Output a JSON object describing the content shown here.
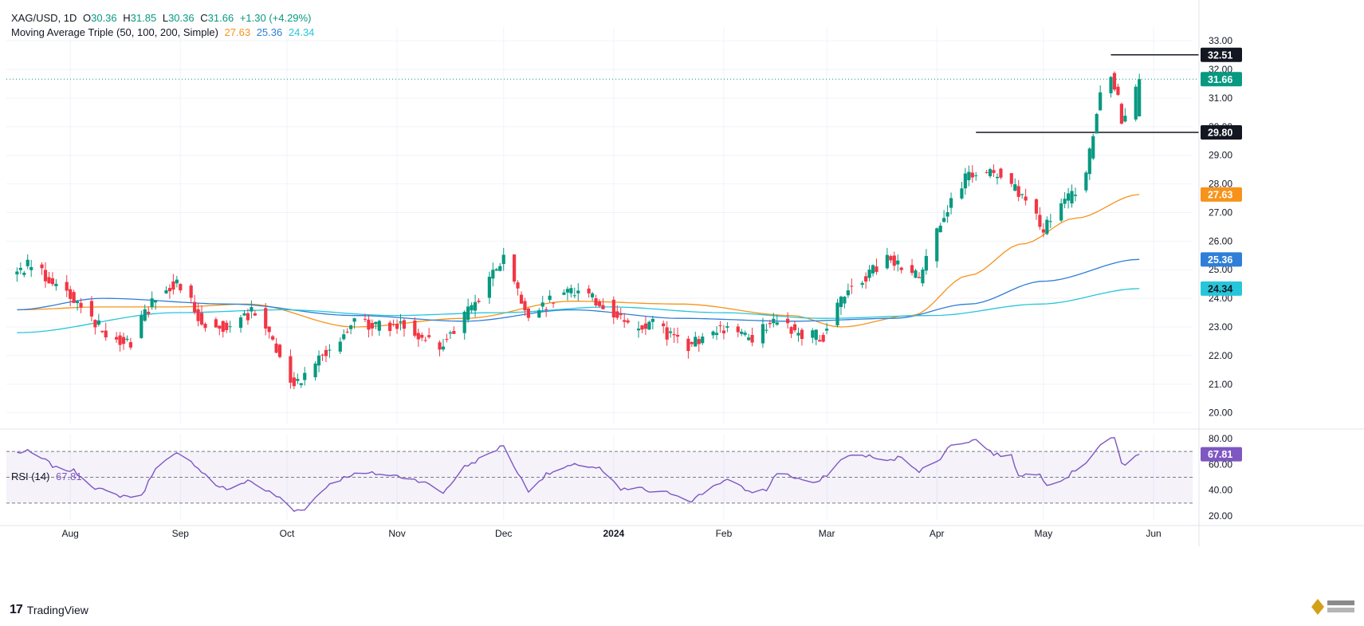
{
  "header": {
    "symbol": "XAG/USD, 1D",
    "open_label": "O",
    "open": "30.36",
    "high_label": "H",
    "high": "31.85",
    "low_label": "L",
    "low": "30.36",
    "close_label": "C",
    "close": "31.66",
    "change": "+1.30 (+4.29%)",
    "ma_label": "Moving Average Triple (50, 100, 200, Simple)",
    "ma50": "27.63",
    "ma100": "25.36",
    "ma200": "24.34",
    "rsi_label": "RSI (14)",
    "rsi": "67.81"
  },
  "brand": {
    "name": "TradingView"
  },
  "colors": {
    "up": "#089981",
    "down": "#f23645",
    "ma50": "#f7931a",
    "ma100": "#2f7ed8",
    "ma200": "#26c6da",
    "rsi": "#7e57c2",
    "grid": "#f0f3fa",
    "text": "#131722"
  },
  "chart_data": [
    {
      "type": "candlestick",
      "title": "XAG/USD, 1D",
      "y_axis_ticks": [
        "20.00",
        "21.00",
        "22.00",
        "23.00",
        "24.00",
        "25.00",
        "26.00",
        "27.00",
        "28.00",
        "29.00",
        "30.00",
        "31.00",
        "32.00",
        "33.00"
      ],
      "ylim": [
        19.6,
        33.2
      ],
      "x_axis_labels": [
        "Aug",
        "Sep",
        "Oct",
        "Nov",
        "Dec",
        "2024",
        "Feb",
        "Mar",
        "Apr",
        "May",
        "Jun"
      ],
      "price_labels": [
        {
          "value": 32.51,
          "text": "32.51",
          "style": "level"
        },
        {
          "value": 31.66,
          "text": "31.66",
          "style": "last"
        },
        {
          "value": 29.8,
          "text": "29.80",
          "style": "level"
        },
        {
          "value": 27.63,
          "text": "27.63",
          "style": "ma50"
        },
        {
          "value": 25.36,
          "text": "25.36",
          "style": "ma100"
        },
        {
          "value": 24.34,
          "text": "24.34",
          "style": "ma200"
        }
      ],
      "horizontal_levels": [
        {
          "value": 32.51,
          "from": "2024-05-20",
          "to": "2024-05-28"
        },
        {
          "value": 29.8,
          "from": "2024-04-12",
          "to": "2024-05-28"
        }
      ],
      "last_price": 31.66,
      "anchors": [
        [
          "2023-07-17",
          24.9
        ],
        [
          "2023-07-21",
          25.2
        ],
        [
          "2023-07-28",
          24.5
        ],
        [
          "2023-08-04",
          23.8
        ],
        [
          "2023-08-11",
          22.7
        ],
        [
          "2023-08-18",
          22.5
        ],
        [
          "2023-08-25",
          24.1
        ],
        [
          "2023-08-31",
          24.6
        ],
        [
          "2023-09-07",
          23.2
        ],
        [
          "2023-09-15",
          23.0
        ],
        [
          "2023-09-22",
          23.6
        ],
        [
          "2023-09-29",
          22.1
        ],
        [
          "2023-10-03",
          21.0
        ],
        [
          "2023-10-10",
          21.9
        ],
        [
          "2023-10-20",
          23.2
        ],
        [
          "2023-10-27",
          23.0
        ],
        [
          "2023-11-03",
          23.1
        ],
        [
          "2023-11-13",
          22.3
        ],
        [
          "2023-11-22",
          23.7
        ],
        [
          "2023-12-01",
          25.4
        ],
        [
          "2023-12-08",
          23.2
        ],
        [
          "2023-12-14",
          23.9
        ],
        [
          "2023-12-22",
          24.3
        ],
        [
          "2023-12-29",
          23.8
        ],
        [
          "2024-01-05",
          23.0
        ],
        [
          "2024-01-12",
          23.1
        ],
        [
          "2024-01-22",
          22.3
        ],
        [
          "2024-01-31",
          23.0
        ],
        [
          "2024-02-09",
          22.6
        ],
        [
          "2024-02-16",
          23.3
        ],
        [
          "2024-02-23",
          22.7
        ],
        [
          "2024-02-29",
          22.7
        ],
        [
          "2024-03-06",
          24.2
        ],
        [
          "2024-03-12",
          24.8
        ],
        [
          "2024-03-19",
          25.4
        ],
        [
          "2024-03-27",
          24.7
        ],
        [
          "2024-04-03",
          27.0
        ],
        [
          "2024-04-09",
          28.2
        ],
        [
          "2024-04-12",
          28.3
        ],
        [
          "2024-04-19",
          28.4
        ],
        [
          "2024-04-26",
          27.3
        ],
        [
          "2024-05-01",
          26.4
        ],
        [
          "2024-05-07",
          27.3
        ],
        [
          "2024-05-13",
          28.3
        ],
        [
          "2024-05-17",
          31.3
        ],
        [
          "2024-05-20",
          31.9
        ],
        [
          "2024-05-22",
          30.9
        ],
        [
          "2024-05-23",
          30.3
        ],
        [
          "2024-05-24",
          30.4
        ],
        [
          "2024-05-28",
          31.66
        ]
      ],
      "moving_averages": [
        {
          "name": "MA 50",
          "points": [
            [
              "2023-07-17",
              23.6
            ],
            [
              "2023-08-10",
              23.7
            ],
            [
              "2023-08-31",
              23.7
            ],
            [
              "2023-09-20",
              23.8
            ],
            [
              "2023-10-20",
              23.0
            ],
            [
              "2023-11-20",
              23.3
            ],
            [
              "2023-12-20",
              23.9
            ],
            [
              "2024-01-20",
              23.8
            ],
            [
              "2024-02-20",
              23.4
            ],
            [
              "2024-03-05",
              23.0
            ],
            [
              "2024-03-25",
              23.4
            ],
            [
              "2024-04-10",
              24.8
            ],
            [
              "2024-04-25",
              25.9
            ],
            [
              "2024-05-10",
              26.8
            ],
            [
              "2024-05-28",
              27.63
            ]
          ]
        },
        {
          "name": "MA 100",
          "points": [
            [
              "2023-07-17",
              23.6
            ],
            [
              "2023-08-10",
              24.0
            ],
            [
              "2023-09-15",
              23.8
            ],
            [
              "2023-10-20",
              23.4
            ],
            [
              "2023-11-20",
              23.2
            ],
            [
              "2023-12-20",
              23.6
            ],
            [
              "2024-01-20",
              23.3
            ],
            [
              "2024-02-20",
              23.2
            ],
            [
              "2024-03-20",
              23.3
            ],
            [
              "2024-04-10",
              23.8
            ],
            [
              "2024-05-01",
              24.6
            ],
            [
              "2024-05-28",
              25.36
            ]
          ]
        },
        {
          "name": "MA 200",
          "points": [
            [
              "2023-07-17",
              22.8
            ],
            [
              "2023-08-31",
              23.5
            ],
            [
              "2023-09-30",
              23.6
            ],
            [
              "2023-10-31",
              23.4
            ],
            [
              "2023-11-30",
              23.5
            ],
            [
              "2023-12-31",
              23.7
            ],
            [
              "2024-01-31",
              23.5
            ],
            [
              "2024-02-29",
              23.3
            ],
            [
              "2024-03-31",
              23.4
            ],
            [
              "2024-04-30",
              23.8
            ],
            [
              "2024-05-28",
              24.34
            ]
          ]
        }
      ]
    },
    {
      "type": "line",
      "title": "RSI (14)",
      "y_axis_ticks": [
        "20.00",
        "40.00",
        "60.00",
        "80.00"
      ],
      "ylim": [
        17,
        83
      ],
      "overbought": 70,
      "oversold": 30,
      "midline": 50,
      "last_value": 67.81,
      "points": [
        [
          "2023-07-17",
          69
        ],
        [
          "2023-07-20",
          70
        ],
        [
          "2023-07-25",
          63
        ],
        [
          "2023-07-28",
          57
        ],
        [
          "2023-08-02",
          55
        ],
        [
          "2023-08-08",
          42
        ],
        [
          "2023-08-14",
          36
        ],
        [
          "2023-08-21",
          35
        ],
        [
          "2023-08-25",
          58
        ],
        [
          "2023-08-31",
          68
        ],
        [
          "2023-09-05",
          60
        ],
        [
          "2023-09-11",
          44
        ],
        [
          "2023-09-15",
          40
        ],
        [
          "2023-09-20",
          48
        ],
        [
          "2023-09-25",
          40
        ],
        [
          "2023-09-29",
          34
        ],
        [
          "2023-10-03",
          24
        ],
        [
          "2023-10-06",
          26
        ],
        [
          "2023-10-13",
          45
        ],
        [
          "2023-10-19",
          52
        ],
        [
          "2023-10-25",
          53
        ],
        [
          "2023-11-01",
          51
        ],
        [
          "2023-11-08",
          47
        ],
        [
          "2023-11-14",
          38
        ],
        [
          "2023-11-20",
          58
        ],
        [
          "2023-11-27",
          68
        ],
        [
          "2023-12-01",
          75
        ],
        [
          "2023-12-05",
          53
        ],
        [
          "2023-12-08",
          40
        ],
        [
          "2023-12-13",
          52
        ],
        [
          "2023-12-18",
          57
        ],
        [
          "2023-12-22",
          60
        ],
        [
          "2023-12-28",
          57
        ],
        [
          "2024-01-03",
          40
        ],
        [
          "2024-01-08",
          42
        ],
        [
          "2024-01-12",
          38
        ],
        [
          "2024-01-17",
          38
        ],
        [
          "2024-01-23",
          32
        ],
        [
          "2024-01-30",
          45
        ],
        [
          "2024-02-02",
          48
        ],
        [
          "2024-02-08",
          39
        ],
        [
          "2024-02-13",
          40
        ],
        [
          "2024-02-16",
          54
        ],
        [
          "2024-02-22",
          49
        ],
        [
          "2024-02-27",
          45
        ],
        [
          "2024-03-01",
          52
        ],
        [
          "2024-03-06",
          66
        ],
        [
          "2024-03-12",
          67
        ],
        [
          "2024-03-18",
          62
        ],
        [
          "2024-03-22",
          66
        ],
        [
          "2024-03-27",
          55
        ],
        [
          "2024-04-01",
          62
        ],
        [
          "2024-04-05",
          75
        ],
        [
          "2024-04-10",
          78
        ],
        [
          "2024-04-12",
          79
        ],
        [
          "2024-04-17",
          68
        ],
        [
          "2024-04-22",
          66
        ],
        [
          "2024-04-24",
          52
        ],
        [
          "2024-04-30",
          52
        ],
        [
          "2024-05-02",
          45
        ],
        [
          "2024-05-07",
          49
        ],
        [
          "2024-05-13",
          62
        ],
        [
          "2024-05-17",
          75
        ],
        [
          "2024-05-20",
          79
        ],
        [
          "2024-05-21",
          80
        ],
        [
          "2024-05-23",
          62
        ],
        [
          "2024-05-24",
          60
        ],
        [
          "2024-05-28",
          67.81
        ]
      ]
    }
  ]
}
